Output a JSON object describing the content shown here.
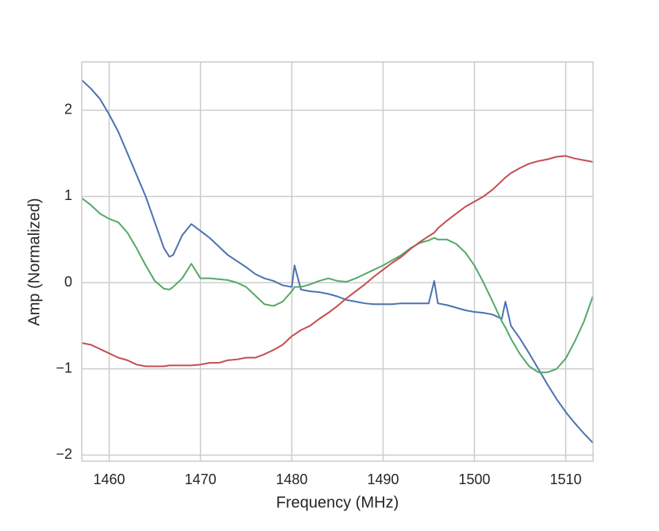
{
  "chart_data": {
    "type": "line",
    "x_label": "Frequency (MHz)",
    "y_label": "Amp (Normalized)",
    "x": [
      1457,
      1458,
      1459,
      1460,
      1461,
      1462,
      1463,
      1464,
      1465,
      1466,
      1466.6,
      1467,
      1468,
      1469,
      1470,
      1471,
      1472,
      1473,
      1474,
      1475,
      1476,
      1477,
      1478,
      1479,
      1480,
      1480.3,
      1481,
      1482,
      1483,
      1484,
      1485,
      1486,
      1487,
      1488,
      1489,
      1490,
      1491,
      1492,
      1493,
      1494,
      1495,
      1495.6,
      1496,
      1497,
      1498,
      1499,
      1500,
      1501,
      1502,
      1503,
      1503.4,
      1504,
      1505,
      1506,
      1507,
      1508,
      1509,
      1510,
      1511,
      1512,
      1513
    ],
    "series": [
      {
        "color": "#4c72b0",
        "values": [
          2.35,
          2.25,
          2.13,
          1.95,
          1.75,
          1.5,
          1.25,
          1.0,
          0.7,
          0.4,
          0.3,
          0.32,
          0.55,
          0.68,
          0.6,
          0.52,
          0.42,
          0.32,
          0.25,
          0.18,
          0.1,
          0.05,
          0.02,
          -0.03,
          -0.05,
          0.2,
          -0.08,
          -0.1,
          -0.11,
          -0.13,
          -0.16,
          -0.2,
          -0.22,
          -0.24,
          -0.25,
          -0.25,
          -0.25,
          -0.24,
          -0.24,
          -0.24,
          -0.24,
          0.02,
          -0.24,
          -0.26,
          -0.29,
          -0.32,
          -0.34,
          -0.35,
          -0.37,
          -0.42,
          -0.22,
          -0.5,
          -0.65,
          -0.82,
          -1.0,
          -1.18,
          -1.35,
          -1.5,
          -1.63,
          -1.75,
          -1.86
        ]
      },
      {
        "color": "#55a868",
        "values": [
          0.98,
          0.9,
          0.8,
          0.74,
          0.7,
          0.58,
          0.4,
          0.2,
          0.02,
          -0.07,
          -0.08,
          -0.05,
          0.05,
          0.22,
          0.05,
          0.05,
          0.04,
          0.03,
          0.0,
          -0.05,
          -0.15,
          -0.25,
          -0.27,
          -0.22,
          -0.1,
          -0.05,
          -0.05,
          -0.02,
          0.02,
          0.05,
          0.02,
          0.01,
          0.05,
          0.1,
          0.15,
          0.2,
          0.26,
          0.32,
          0.4,
          0.46,
          0.49,
          0.52,
          0.5,
          0.5,
          0.45,
          0.35,
          0.2,
          0.0,
          -0.22,
          -0.45,
          -0.52,
          -0.65,
          -0.83,
          -0.97,
          -1.04,
          -1.04,
          -1.0,
          -0.88,
          -0.68,
          -0.45,
          -0.15
        ]
      },
      {
        "color": "#c44e52",
        "values": [
          -0.7,
          -0.72,
          -0.77,
          -0.82,
          -0.87,
          -0.9,
          -0.95,
          -0.97,
          -0.97,
          -0.97,
          -0.96,
          -0.96,
          -0.96,
          -0.96,
          -0.95,
          -0.93,
          -0.93,
          -0.9,
          -0.89,
          -0.87,
          -0.87,
          -0.83,
          -0.78,
          -0.72,
          -0.62,
          -0.6,
          -0.55,
          -0.5,
          -0.42,
          -0.35,
          -0.27,
          -0.18,
          -0.1,
          -0.02,
          0.07,
          0.15,
          0.23,
          0.3,
          0.39,
          0.47,
          0.54,
          0.58,
          0.63,
          0.72,
          0.8,
          0.88,
          0.94,
          1.0,
          1.08,
          1.18,
          1.22,
          1.27,
          1.33,
          1.38,
          1.41,
          1.43,
          1.46,
          1.47,
          1.44,
          1.42,
          1.4
        ]
      }
    ],
    "xlim": [
      1457,
      1513
    ],
    "xticks": [
      1460,
      1470,
      1480,
      1490,
      1500,
      1510
    ],
    "ylim": [
      -2.07,
      2.56
    ],
    "yticks": [
      {
        "value": -2,
        "label": "−2"
      },
      {
        "value": -1,
        "label": "−1"
      },
      0,
      1,
      2
    ],
    "grid": true
  }
}
